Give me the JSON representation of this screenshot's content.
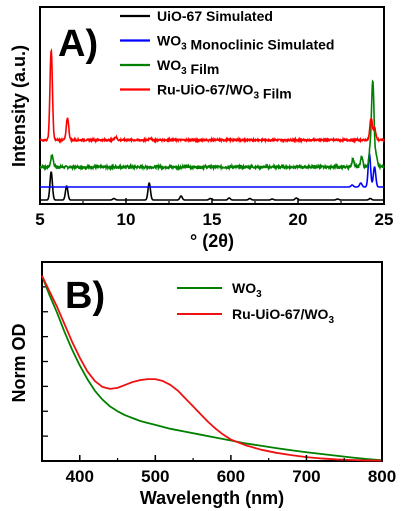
{
  "figure": {
    "panels": [
      {
        "panel_label": "A)",
        "chart_data": {
          "type": "line",
          "title": "",
          "xlabel": "° (2θ)",
          "ylabel": "Intensity (a.u.)",
          "xlim": [
            5,
            25
          ],
          "xticks": [
            5,
            10,
            15,
            20,
            25
          ],
          "xtick_labels": [
            "5",
            "10",
            "15",
            "20",
            "25"
          ],
          "yticks_labeled": false,
          "legend_position": "top-right",
          "series": [
            {
              "name": "UiO-67 Simulated",
              "legend_parts": [
                [
                  "UiO-67 Simulated",
                  false
                ]
              ],
              "color": "#000000",
              "offset": 0,
              "baseline": 0,
              "peaks": [
                [
                  5.65,
                  28
                ],
                [
                  6.55,
                  14
                ],
                [
                  9.3,
                  1.5
                ],
                [
                  11.35,
                  17
                ],
                [
                  13.2,
                  4
                ],
                [
                  14.9,
                  1.5
                ],
                [
                  16.0,
                  2
                ],
                [
                  17.2,
                  1.5
                ],
                [
                  18.5,
                  1
                ],
                [
                  19.9,
                  2
                ],
                [
                  22.3,
                  1
                ],
                [
                  24.2,
                  1.5
                ]
              ],
              "noise": 0
            },
            {
              "name": "WO3 Monoclinic Simulated",
              "legend_parts": [
                [
                  "WO",
                  false
                ],
                [
                  "3",
                  true
                ],
                [
                  " Monoclinic Simulated",
                  false
                ]
              ],
              "color": "#0000ff",
              "offset": 13,
              "baseline": 0,
              "peaks": [
                [
                  23.15,
                  2
                ],
                [
                  23.65,
                  4
                ],
                [
                  24.15,
                  33
                ],
                [
                  24.45,
                  20
                ]
              ],
              "noise": 0
            },
            {
              "name": "WO3 Film",
              "legend_parts": [
                [
                  "WO",
                  false
                ],
                [
                  "3",
                  true
                ],
                [
                  " Film",
                  false
                ]
              ],
              "color": "#008000",
              "offset": 30,
              "baseline": 3,
              "peaks": [
                [
                  5.7,
                  12
                ],
                [
                  23.2,
                  8
                ],
                [
                  23.7,
                  10
                ],
                [
                  24.2,
                  18
                ],
                [
                  24.35,
                  85
                ],
                [
                  24.55,
                  12
                ]
              ],
              "noise": 1.3
            },
            {
              "name": "Ru-UiO-67/WO3 Film",
              "legend_parts": [
                [
                  "Ru-UiO-67/WO",
                  false
                ],
                [
                  "3",
                  true
                ],
                [
                  " Film",
                  false
                ]
              ],
              "color": "#ff0000",
              "offset": 60,
              "baseline": 0,
              "peaks": [
                [
                  5.65,
                  90
                ],
                [
                  6.6,
                  22
                ],
                [
                  9.4,
                  3
                ],
                [
                  11.4,
                  2
                ],
                [
                  24.25,
                  22
                ],
                [
                  24.45,
                  12
                ]
              ],
              "noise": 0.9
            }
          ]
        }
      },
      {
        "panel_label": "B)",
        "chart_data": {
          "type": "line",
          "title": "",
          "xlabel": "Wavelength (nm)",
          "ylabel": "Norm OD",
          "xlim": [
            350,
            800
          ],
          "ylim": [
            0,
            1
          ],
          "xticks": [
            400,
            500,
            600,
            700,
            800
          ],
          "xtick_labels": [
            "400",
            "500",
            "600",
            "700",
            "800"
          ],
          "yticks_labeled": false,
          "legend_position": "top-right",
          "series": [
            {
              "name": "WO3",
              "legend_parts": [
                [
                  "WO",
                  false
                ],
                [
                  "3",
                  true
                ]
              ],
              "color": "#008000",
              "x": [
                350,
                360,
                370,
                380,
                390,
                400,
                410,
                420,
                430,
                440,
                450,
                460,
                470,
                480,
                490,
                500,
                520,
                540,
                560,
                580,
                600,
                620,
                640,
                660,
                680,
                700,
                720,
                740,
                760,
                780,
                800
              ],
              "y": [
                0.95,
                0.85,
                0.76,
                0.66,
                0.57,
                0.49,
                0.42,
                0.36,
                0.315,
                0.28,
                0.255,
                0.235,
                0.22,
                0.205,
                0.195,
                0.185,
                0.165,
                0.15,
                0.135,
                0.12,
                0.105,
                0.09,
                0.078,
                0.066,
                0.055,
                0.045,
                0.036,
                0.027,
                0.018,
                0.01,
                0.004
              ]
            },
            {
              "name": "Ru-UiO-67/WO3",
              "legend_parts": [
                [
                  "Ru-UiO-67/WO",
                  false
                ],
                [
                  "3",
                  true
                ]
              ],
              "color": "#ee1111",
              "x": [
                350,
                360,
                370,
                380,
                390,
                400,
                410,
                420,
                430,
                440,
                450,
                460,
                470,
                480,
                490,
                500,
                510,
                520,
                530,
                540,
                550,
                560,
                570,
                580,
                590,
                600,
                620,
                640,
                660,
                680,
                700,
                720,
                740,
                760,
                780,
                800
              ],
              "y": [
                0.95,
                0.87,
                0.79,
                0.7,
                0.61,
                0.53,
                0.46,
                0.41,
                0.38,
                0.37,
                0.375,
                0.39,
                0.405,
                0.415,
                0.42,
                0.42,
                0.41,
                0.39,
                0.36,
                0.32,
                0.28,
                0.24,
                0.2,
                0.165,
                0.135,
                0.11,
                0.08,
                0.058,
                0.042,
                0.03,
                0.02,
                0.013,
                0.008,
                0.005,
                0.003,
                0.002
              ]
            }
          ]
        }
      }
    ]
  }
}
